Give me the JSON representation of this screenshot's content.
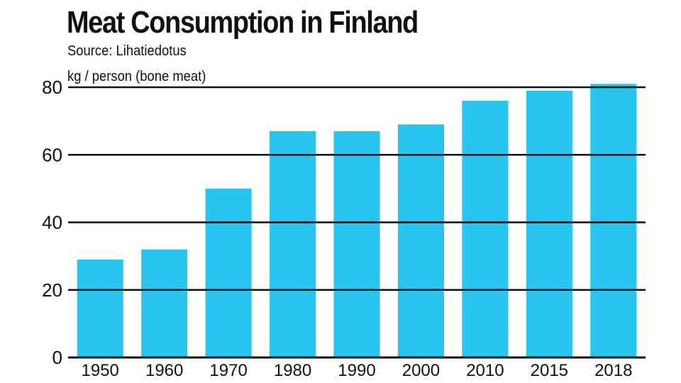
{
  "chart_data": {
    "type": "bar",
    "title": "Meat Consumption in Finland",
    "subtitle": "Source: Lihatiedotus",
    "ylabel": "kg / person (bone meat)",
    "xlabel": "",
    "categories": [
      "1950",
      "1960",
      "1970",
      "1980",
      "1990",
      "2000",
      "2010",
      "2015",
      "2018"
    ],
    "values": [
      29,
      32,
      50,
      67,
      67,
      69,
      76,
      79,
      81
    ],
    "ylim": [
      0,
      80
    ],
    "yticks": [
      0,
      20,
      40,
      60,
      80
    ],
    "grid": true,
    "legend": "none",
    "colors": {
      "bar": "#29C5EE",
      "grid": "#111111",
      "text": "#111111"
    }
  }
}
